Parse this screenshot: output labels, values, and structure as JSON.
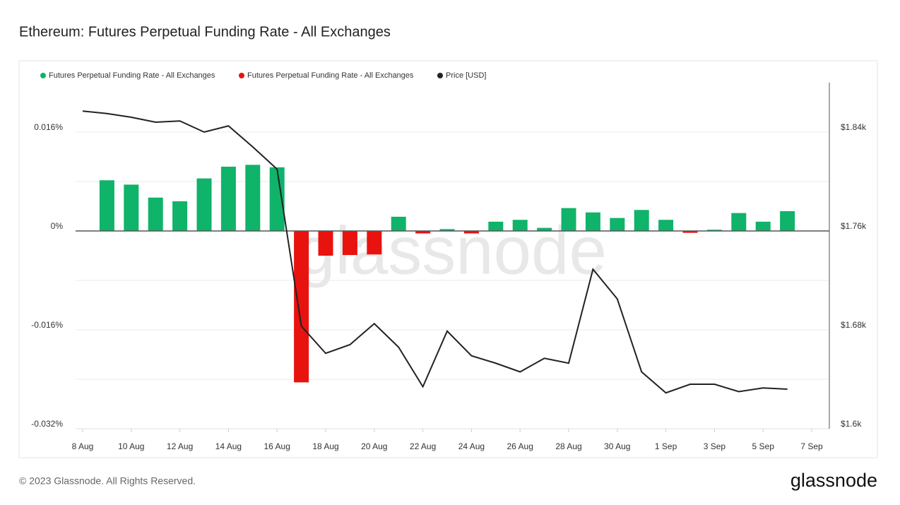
{
  "chart_data": {
    "type": "bar",
    "title": "Ethereum: Futures Perpetual Funding Rate - All Exchanges",
    "watermark": "glassnode",
    "footer": "© 2023 Glassnode. All Rights Reserved.",
    "brand": "glassnode",
    "categories": [
      "8 Aug",
      null,
      "10 Aug",
      null,
      "12 Aug",
      null,
      "14 Aug",
      null,
      "16 Aug",
      null,
      "18 Aug",
      null,
      "20 Aug",
      null,
      "22 Aug",
      null,
      "24 Aug",
      null,
      "26 Aug",
      null,
      "28 Aug",
      null,
      "30 Aug",
      null,
      "1 Sep",
      null,
      "3 Sep",
      null,
      "5 Sep",
      null,
      "7 Sep"
    ],
    "series": [
      {
        "name": "Futures Perpetual Funding Rate - All Exchanges",
        "color": "#0fb36a",
        "values": [
          null,
          0.0082,
          0.0075,
          0.0054,
          0.0048,
          0.0085,
          0.0104,
          0.0107,
          0.0103,
          null,
          null,
          null,
          null,
          0.0023,
          null,
          0.0003,
          null,
          0.0015,
          0.0018,
          0.0005,
          0.0037,
          0.003,
          0.0021,
          0.0034,
          0.0018,
          null,
          0.0002,
          0.0029,
          0.0015,
          0.0032,
          null
        ]
      },
      {
        "name": "Futures Perpetual Funding Rate - All Exchanges",
        "color": "#e8120f",
        "values": [
          null,
          null,
          null,
          null,
          null,
          null,
          null,
          null,
          null,
          -0.0245,
          -0.004,
          -0.0039,
          -0.0038,
          null,
          -0.0004,
          null,
          -0.0004,
          null,
          null,
          null,
          null,
          null,
          null,
          null,
          null,
          -0.0003,
          null,
          null,
          null,
          null,
          null
        ]
      },
      {
        "name": "Price [USD]",
        "color": "#222222",
        "type": "line",
        "axis": "y2",
        "values": [
          1857,
          1855,
          1852,
          1848,
          1849,
          1840,
          1845,
          1828,
          1810,
          1683,
          1661,
          1668,
          1685,
          1666,
          1634,
          1679,
          1659,
          1653,
          1646,
          1657,
          1653,
          1729,
          1705,
          1646,
          1629,
          1636,
          1636,
          1630,
          1633,
          1632,
          null
        ]
      }
    ],
    "ylim": [
      -0.032,
      0.024
    ],
    "yticks": [
      {
        "value": -0.032,
        "label": "-0.032%"
      },
      {
        "value": -0.016,
        "label": "-0.016%"
      },
      {
        "value": 0,
        "label": "0%"
      },
      {
        "value": 0.016,
        "label": "0.016%"
      }
    ],
    "y2lim": [
      1600,
      1880
    ],
    "y2ticks": [
      {
        "value": 1600,
        "label": "$1.6k"
      },
      {
        "value": 1680,
        "label": "$1.68k"
      },
      {
        "value": 1760,
        "label": "$1.76k"
      },
      {
        "value": 1840,
        "label": "$1.84k"
      }
    ],
    "grid": true
  }
}
